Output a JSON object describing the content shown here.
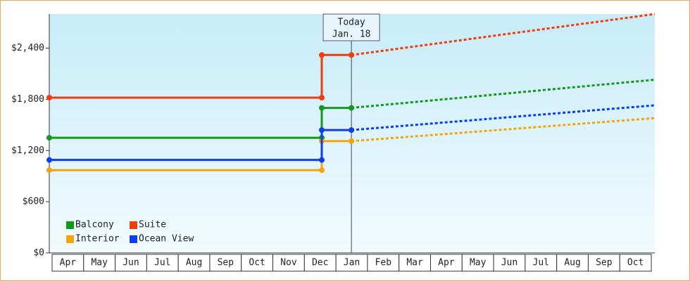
{
  "chart_data": {
    "type": "line",
    "x": [
      0,
      8.64,
      8.64,
      9.58
    ],
    "forecast_x": [
      9.58,
      19.2
    ],
    "series": [
      {
        "name": "Balcony",
        "color": "#14991a",
        "values": [
          1350,
          1350,
          1700,
          1700
        ],
        "forecast": [
          1700,
          2030
        ]
      },
      {
        "name": "Suite",
        "color": "#f23c0c",
        "values": [
          1820,
          1820,
          2320,
          2320
        ],
        "forecast": [
          2320,
          2800
        ]
      },
      {
        "name": "Interior",
        "color": "#f5a50a",
        "values": [
          970,
          970,
          1310,
          1310
        ],
        "forecast": [
          1310,
          1580
        ]
      },
      {
        "name": "Ocean View",
        "color": "#0a3ef0",
        "values": [
          1090,
          1090,
          1440,
          1440
        ],
        "forecast": [
          1440,
          1730
        ]
      }
    ],
    "xlim": [
      0,
      19.2
    ],
    "xticks": [
      {
        "value": 0.5,
        "label": "Apr"
      },
      {
        "value": 1.5,
        "label": "May"
      },
      {
        "value": 2.5,
        "label": "Jun"
      },
      {
        "value": 3.5,
        "label": "Jul"
      },
      {
        "value": 4.5,
        "label": "Aug"
      },
      {
        "value": 5.5,
        "label": "Sep"
      },
      {
        "value": 6.5,
        "label": "Oct"
      },
      {
        "value": 7.5,
        "label": "Nov"
      },
      {
        "value": 8.5,
        "label": "Dec"
      },
      {
        "value": 9.5,
        "label": "Jan"
      },
      {
        "value": 10.5,
        "label": "Feb"
      },
      {
        "value": 11.5,
        "label": "Mar"
      },
      {
        "value": 12.5,
        "label": "Apr"
      },
      {
        "value": 13.5,
        "label": "May"
      },
      {
        "value": 14.5,
        "label": "Jun"
      },
      {
        "value": 15.5,
        "label": "Jul"
      },
      {
        "value": 16.5,
        "label": "Aug"
      },
      {
        "value": 17.5,
        "label": "Sep"
      },
      {
        "value": 18.5,
        "label": "Oct"
      }
    ],
    "ylim": [
      0,
      2800
    ],
    "yticks": [
      {
        "value": 0,
        "label": "$0"
      },
      {
        "value": 600,
        "label": "$600"
      },
      {
        "value": 1200,
        "label": "$1,200"
      },
      {
        "value": 1800,
        "label": "$1,800"
      },
      {
        "value": 2400,
        "label": "$2,400"
      }
    ],
    "today": {
      "x": 9.58,
      "label": [
        "Today",
        "Jan. 18"
      ]
    },
    "legend": "lower left",
    "grid": false
  }
}
